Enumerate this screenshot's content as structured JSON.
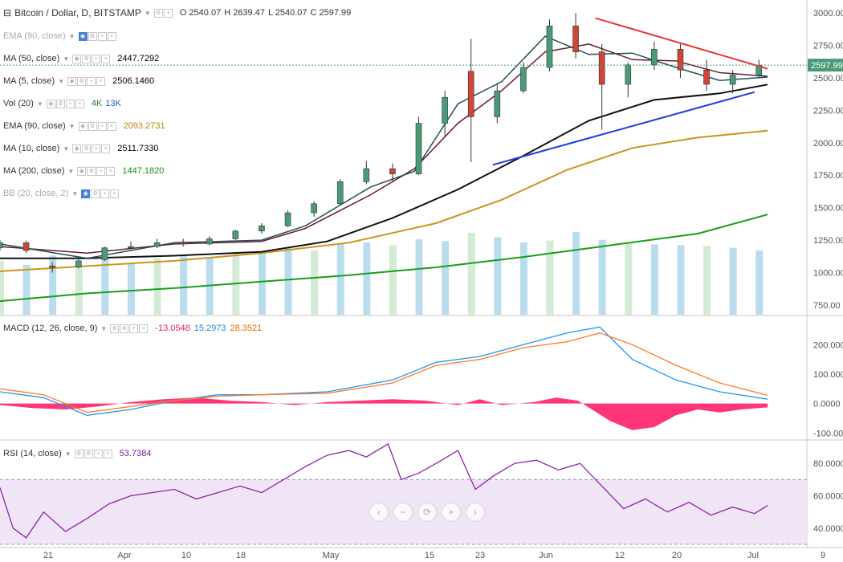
{
  "header": {
    "symbol": "Bitcoin / Dollar, D, BITSTAMP",
    "ohlc": [
      {
        "label": "O",
        "value": "2540.07"
      },
      {
        "label": "H",
        "value": "2639.47"
      },
      {
        "label": "L",
        "value": "2540.07"
      },
      {
        "label": "C",
        "value": "2597.99"
      }
    ]
  },
  "indicators": [
    {
      "name": "EMA (90, close)",
      "value": "",
      "color": "#aaaaaa",
      "faded": true
    },
    {
      "name": "MA (50, close)",
      "value": "2447.7292",
      "color": "#000000"
    },
    {
      "name": "MA (5, close)",
      "value": "2506.1460",
      "color": "#000000"
    },
    {
      "name": "Vol (20)",
      "value": "4K",
      "value2": "13K",
      "color": "#2e7d32",
      "color2": "#1565c0"
    },
    {
      "name": "EMA (90, close)",
      "value": "2093.2731",
      "color": "#b8860b"
    },
    {
      "name": "MA (10, close)",
      "value": "2511.7330",
      "color": "#000000"
    },
    {
      "name": "MA (200, close)",
      "value": "1447.1820",
      "color": "#1a8a1a"
    },
    {
      "name": "BB (20, close, 2)",
      "value": "",
      "color": "#aaaaaa",
      "faded": true
    }
  ],
  "macd_legend": {
    "name": "MACD (12, 26, close, 9)",
    "v1": "-13.0548",
    "c1": "#e91e63",
    "v2": "15.2973",
    "c2": "#1e88e5",
    "v3": "28.3521",
    "c3": "#ef6c00"
  },
  "rsi_legend": {
    "name": "RSI (14, close)",
    "value": "53.7384",
    "color": "#7b1fa2"
  },
  "price_axis": [
    "3000.00",
    "2750.00",
    "2500.00",
    "2250.00",
    "2000.00",
    "1750.00",
    "1500.00",
    "1250.00",
    "1000.00",
    "750.00"
  ],
  "macd_axis": [
    "200.0000",
    "100.0000",
    "0.0000",
    "-100.0000"
  ],
  "rsi_axis": [
    "80.0000",
    "60.0000",
    "40.0000"
  ],
  "time_axis": [
    "21",
    "Apr",
    "10",
    "18",
    "May",
    "15",
    "23",
    "Jun",
    "12",
    "20",
    "Jul",
    "9"
  ],
  "last_price_label": "2597.99",
  "nav_buttons": [
    "‹",
    "−",
    "⟳",
    "+",
    "›"
  ],
  "chart_data": [
    {
      "type": "line",
      "title": "Bitcoin / Dollar, D, BITSTAMP",
      "ylim": [
        700,
        3050
      ],
      "series": [
        {
          "name": "MA (200, close)",
          "values": [
            [
              0,
              780
            ],
            [
              40,
              840
            ],
            [
              80,
              880
            ],
            [
              120,
              930
            ],
            [
              160,
              980
            ],
            [
              200,
              1040
            ],
            [
              240,
              1120
            ],
            [
              280,
              1210
            ],
            [
              320,
              1300
            ],
            [
              352,
              1447
            ]
          ]
        },
        {
          "name": "EMA (90, close)",
          "values": [
            [
              0,
              1010
            ],
            [
              40,
              1050
            ],
            [
              80,
              1090
            ],
            [
              120,
              1150
            ],
            [
              160,
              1230
            ],
            [
              200,
              1380
            ],
            [
              230,
              1560
            ],
            [
              260,
              1790
            ],
            [
              290,
              1960
            ],
            [
              320,
              2040
            ],
            [
              352,
              2093
            ]
          ]
        },
        {
          "name": "MA (50, close)",
          "values": [
            [
              0,
              1110
            ],
            [
              40,
              1110
            ],
            [
              80,
              1130
            ],
            [
              120,
              1160
            ],
            [
              150,
              1240
            ],
            [
              180,
              1420
            ],
            [
              210,
              1640
            ],
            [
              240,
              1900
            ],
            [
              270,
              2170
            ],
            [
              300,
              2330
            ],
            [
              330,
              2380
            ],
            [
              352,
              2448
            ]
          ]
        },
        {
          "name": "MA (10, close)",
          "values": [
            [
              0,
              1200
            ],
            [
              40,
              1150
            ],
            [
              80,
              1220
            ],
            [
              120,
              1240
            ],
            [
              140,
              1340
            ],
            [
              170,
              1600
            ],
            [
              190,
              1800
            ],
            [
              210,
              2150
            ],
            [
              230,
              2400
            ],
            [
              250,
              2700
            ],
            [
              270,
              2760
            ],
            [
              290,
              2640
            ],
            [
              310,
              2630
            ],
            [
              330,
              2540
            ],
            [
              352,
              2512
            ]
          ]
        },
        {
          "name": "MA (5, close)",
          "values": [
            [
              0,
              1220
            ],
            [
              40,
              1110
            ],
            [
              80,
              1230
            ],
            [
              120,
              1250
            ],
            [
              140,
              1360
            ],
            [
              170,
              1660
            ],
            [
              190,
              1780
            ],
            [
              210,
              2300
            ],
            [
              230,
              2470
            ],
            [
              250,
              2820
            ],
            [
              270,
              2680
            ],
            [
              290,
              2690
            ],
            [
              310,
              2580
            ],
            [
              330,
              2480
            ],
            [
              352,
              2506
            ]
          ]
        }
      ],
      "candles": [
        [
          0,
          1190,
          1250,
          1170,
          1230
        ],
        [
          12,
          1230,
          1245,
          1150,
          1170
        ],
        [
          24,
          1050,
          1080,
          1000,
          1040
        ],
        [
          36,
          1040,
          1110,
          1030,
          1090
        ],
        [
          48,
          1100,
          1200,
          1090,
          1190
        ],
        [
          60,
          1190,
          1240,
          1180,
          1200
        ],
        [
          72,
          1200,
          1260,
          1190,
          1230
        ],
        [
          84,
          1230,
          1260,
          1200,
          1220
        ],
        [
          96,
          1220,
          1280,
          1210,
          1260
        ],
        [
          108,
          1260,
          1330,
          1250,
          1320
        ],
        [
          120,
          1320,
          1380,
          1300,
          1360
        ],
        [
          132,
          1360,
          1480,
          1350,
          1460
        ],
        [
          144,
          1460,
          1550,
          1430,
          1530
        ],
        [
          156,
          1530,
          1720,
          1520,
          1700
        ],
        [
          168,
          1700,
          1860,
          1680,
          1800
        ],
        [
          180,
          1800,
          1840,
          1700,
          1760
        ],
        [
          192,
          1760,
          2200,
          1750,
          2150
        ],
        [
          204,
          2150,
          2400,
          2050,
          2350
        ],
        [
          216,
          2550,
          2800,
          1850,
          2200
        ],
        [
          228,
          2200,
          2450,
          2150,
          2400
        ],
        [
          240,
          2400,
          2620,
          2380,
          2580
        ],
        [
          252,
          2580,
          2950,
          2550,
          2900
        ],
        [
          264,
          2900,
          3000,
          2650,
          2700
        ],
        [
          276,
          2700,
          2760,
          2100,
          2450
        ],
        [
          288,
          2450,
          2620,
          2350,
          2600
        ],
        [
          300,
          2600,
          2780,
          2560,
          2720
        ],
        [
          312,
          2720,
          2760,
          2500,
          2560
        ],
        [
          324,
          2560,
          2640,
          2400,
          2450
        ],
        [
          336,
          2450,
          2560,
          2380,
          2520
        ],
        [
          348,
          2520,
          2640,
          2500,
          2598
        ]
      ],
      "volume": [
        820,
        760,
        900,
        700,
        840,
        780,
        860,
        900,
        880,
        940,
        960,
        1020,
        980,
        1080,
        1100,
        1060,
        1150,
        1120,
        1250,
        1180,
        1100,
        1130,
        1260,
        1140,
        1080,
        1070,
        1060,
        1050,
        1020,
        980
      ],
      "trendlines": [
        {
          "name": "resistance",
          "color": "#e53935",
          "from": [
            273,
            2960
          ],
          "to": [
            352,
            2570
          ]
        },
        {
          "name": "support",
          "color": "#1e3ddb",
          "from": [
            226,
            1830
          ],
          "to": [
            346,
            2390
          ]
        }
      ]
    },
    {
      "type": "line",
      "title": "MACD (12, 26, close, 9)",
      "ylim": [
        -110,
        280
      ],
      "series": [
        {
          "name": "MACD",
          "values": [
            [
              0,
              40
            ],
            [
              20,
              20
            ],
            [
              40,
              -40
            ],
            [
              60,
              -20
            ],
            [
              80,
              10
            ],
            [
              100,
              30
            ],
            [
              120,
              30
            ],
            [
              150,
              40
            ],
            [
              180,
              80
            ],
            [
              200,
              140
            ],
            [
              220,
              160
            ],
            [
              240,
              200
            ],
            [
              260,
              240
            ],
            [
              275,
              260
            ],
            [
              290,
              150
            ],
            [
              310,
              80
            ],
            [
              330,
              40
            ],
            [
              352,
              15
            ]
          ]
        },
        {
          "name": "Signal",
          "values": [
            [
              0,
              50
            ],
            [
              20,
              30
            ],
            [
              40,
              -30
            ],
            [
              60,
              -10
            ],
            [
              80,
              10
            ],
            [
              100,
              25
            ],
            [
              120,
              30
            ],
            [
              150,
              35
            ],
            [
              180,
              70
            ],
            [
              200,
              130
            ],
            [
              220,
              150
            ],
            [
              240,
              190
            ],
            [
              260,
              210
            ],
            [
              275,
              240
            ],
            [
              290,
              200
            ],
            [
              310,
              130
            ],
            [
              330,
              70
            ],
            [
              352,
              28
            ]
          ]
        }
      ],
      "histogram": [
        [
          0,
          -5
        ],
        [
          15,
          -15
        ],
        [
          30,
          -20
        ],
        [
          45,
          -10
        ],
        [
          60,
          5
        ],
        [
          75,
          15
        ],
        [
          90,
          20
        ],
        [
          105,
          10
        ],
        [
          120,
          5
        ],
        [
          135,
          -5
        ],
        [
          150,
          5
        ],
        [
          165,
          10
        ],
        [
          180,
          15
        ],
        [
          195,
          10
        ],
        [
          210,
          -5
        ],
        [
          220,
          15
        ],
        [
          230,
          -5
        ],
        [
          245,
          5
        ],
        [
          255,
          20
        ],
        [
          265,
          10
        ],
        [
          280,
          -60
        ],
        [
          290,
          -90
        ],
        [
          300,
          -80
        ],
        [
          310,
          -40
        ],
        [
          320,
          -20
        ],
        [
          330,
          -30
        ],
        [
          340,
          -20
        ],
        [
          352,
          -13
        ]
      ]
    },
    {
      "type": "line",
      "title": "RSI (14, close)",
      "ylim": [
        30,
        92
      ],
      "bands": [
        30,
        70
      ],
      "series": [
        {
          "name": "RSI",
          "values": [
            [
              0,
              65
            ],
            [
              6,
              40
            ],
            [
              12,
              34
            ],
            [
              20,
              50
            ],
            [
              30,
              38
            ],
            [
              40,
              46
            ],
            [
              50,
              55
            ],
            [
              60,
              60
            ],
            [
              70,
              62
            ],
            [
              80,
              64
            ],
            [
              90,
              58
            ],
            [
              100,
              62
            ],
            [
              110,
              66
            ],
            [
              120,
              62
            ],
            [
              130,
              70
            ],
            [
              140,
              78
            ],
            [
              150,
              85
            ],
            [
              160,
              88
            ],
            [
              168,
              84
            ],
            [
              178,
              92
            ],
            [
              184,
              70
            ],
            [
              192,
              74
            ],
            [
              200,
              80
            ],
            [
              210,
              88
            ],
            [
              218,
              64
            ],
            [
              226,
              72
            ],
            [
              236,
              80
            ],
            [
              246,
              82
            ],
            [
              256,
              76
            ],
            [
              266,
              80
            ],
            [
              276,
              66
            ],
            [
              286,
              52
            ],
            [
              296,
              58
            ],
            [
              306,
              50
            ],
            [
              316,
              56
            ],
            [
              326,
              48
            ],
            [
              336,
              53
            ],
            [
              346,
              49
            ],
            [
              352,
              54
            ]
          ]
        }
      ]
    }
  ]
}
